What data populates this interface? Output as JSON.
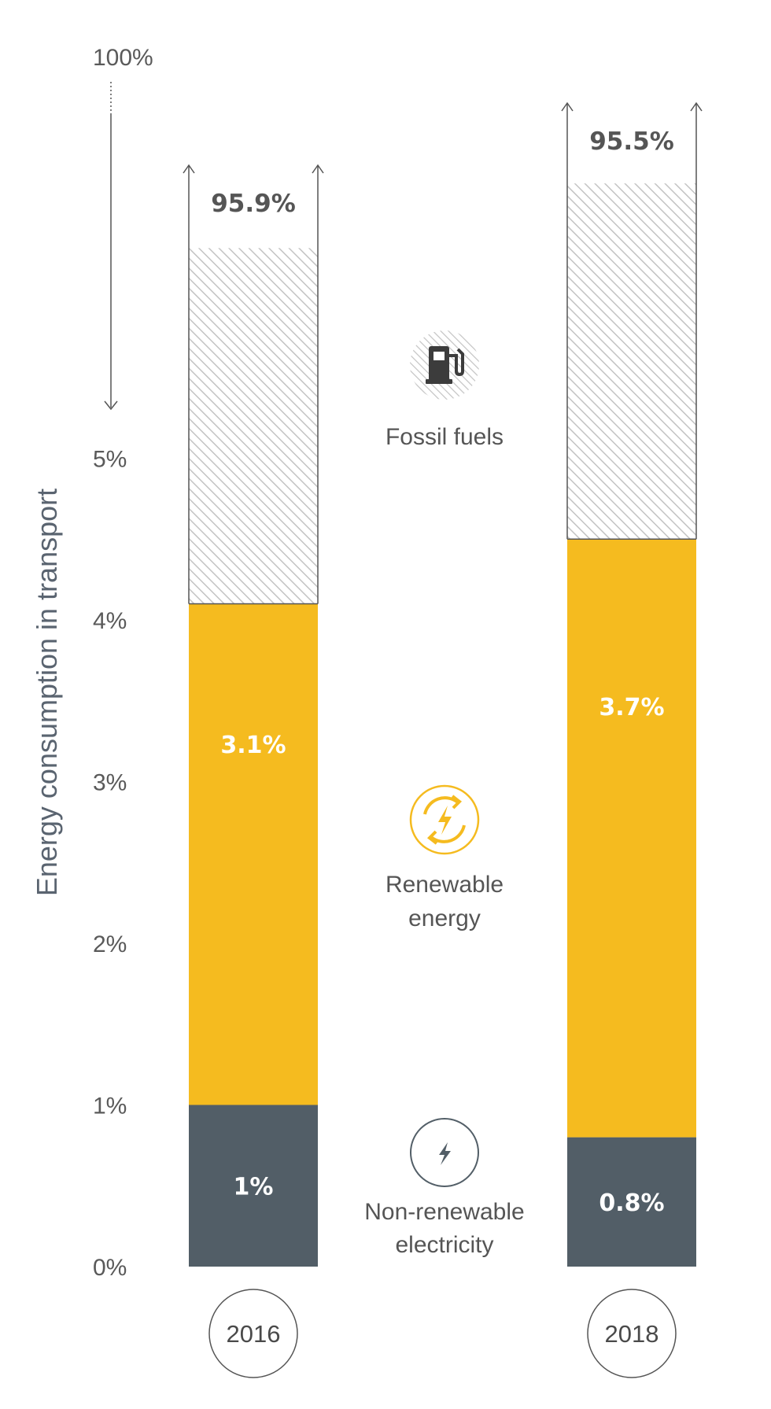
{
  "chart_data": {
    "type": "bar",
    "stacked": true,
    "categories": [
      "2016",
      "2018"
    ],
    "ylabel": "Energy consumption in transport",
    "y_ticks": [
      "0%",
      "1%",
      "2%",
      "3%",
      "4%",
      "5%"
    ],
    "y_top_label": "100%",
    "ylim": [
      0,
      5
    ],
    "axis_break": "between 5% and 100%",
    "series": [
      {
        "name": "Non-renewable electricity",
        "values": [
          1.0,
          0.8
        ],
        "labels": [
          "1%",
          "0.8%"
        ],
        "color": "#525e67"
      },
      {
        "name": "Renewable energy",
        "values": [
          3.1,
          3.7
        ],
        "labels": [
          "3.1%",
          "3.7%"
        ],
        "color": "#f5bb1f"
      },
      {
        "name": "Fossil fuels",
        "values": [
          95.9,
          95.5
        ],
        "labels": [
          "95.9%",
          "95.5%"
        ],
        "color": "#c8c8c8",
        "pattern": "diagonal-hatch"
      }
    ]
  },
  "legend": {
    "fossil": {
      "line1": "Fossil fuels",
      "icon": "fuel-pump-icon"
    },
    "renewable": {
      "line1": "Renewable",
      "line2": "energy",
      "icon": "renewable-cycle-icon"
    },
    "nonrenewable": {
      "line1": "Non-renewable",
      "line2": "electricity",
      "icon": "lightning-icon"
    }
  },
  "colors": {
    "renewable": "#f5bb1f",
    "nonrenewable": "#525e67",
    "fossil_hatch": "#c8c8c8",
    "text": "#555555"
  }
}
